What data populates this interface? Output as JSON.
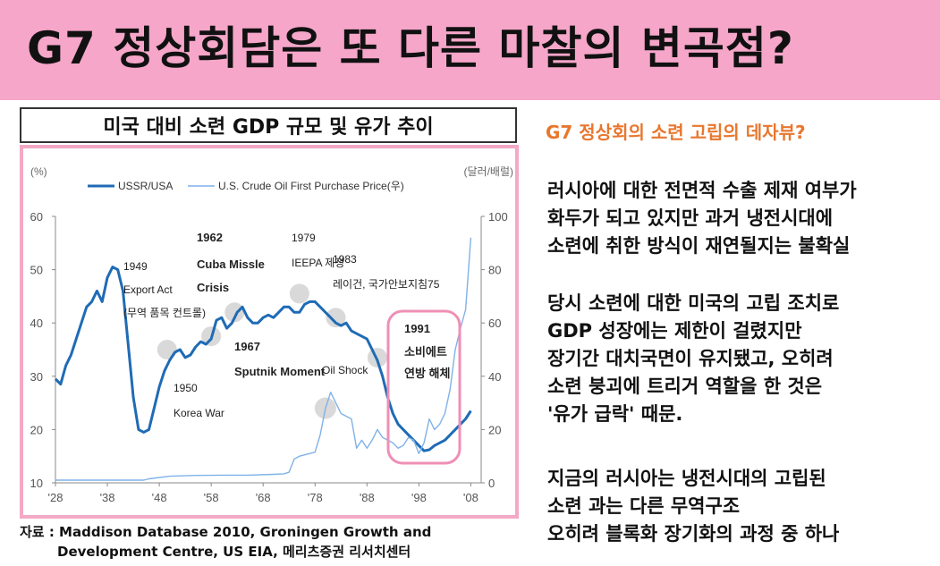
{
  "header": {
    "title": "G7 정상회담은 또 다른 마찰의 변곡점?"
  },
  "chart_box_title": "미국 대비 소련 GDP 규모 및 유가 추이",
  "chart_data": {
    "type": "line",
    "left_unit": "(%)",
    "right_unit": "(달러/배럴)",
    "x_ticks": [
      "'28",
      "'38",
      "'48",
      "'58",
      "'68",
      "'78",
      "'88",
      "'98",
      "'08"
    ],
    "x_tick_years": [
      1928,
      1938,
      1948,
      1958,
      1968,
      1978,
      1988,
      1998,
      2008
    ],
    "y_left_ticks": [
      10,
      20,
      30,
      40,
      50,
      60
    ],
    "y_right_ticks": [
      0,
      20,
      40,
      60,
      80,
      100
    ],
    "ylim_left": [
      10,
      60
    ],
    "ylim_right": [
      0,
      100
    ],
    "xlim": [
      1928,
      2010
    ],
    "series": [
      {
        "name": "USSR/USA",
        "axis": "left",
        "color": "#1f6bb5",
        "x": [
          1928,
          1929,
          1930,
          1931,
          1932,
          1933,
          1934,
          1935,
          1936,
          1937,
          1938,
          1939,
          1940,
          1941,
          1942,
          1943,
          1944,
          1945,
          1946,
          1947,
          1948,
          1949,
          1950,
          1951,
          1952,
          1953,
          1954,
          1955,
          1956,
          1957,
          1958,
          1959,
          1960,
          1961,
          1962,
          1963,
          1964,
          1965,
          1966,
          1967,
          1968,
          1969,
          1970,
          1971,
          1972,
          1973,
          1974,
          1975,
          1976,
          1977,
          1978,
          1979,
          1980,
          1981,
          1982,
          1983,
          1984,
          1985,
          1986,
          1987,
          1988,
          1989,
          1990,
          1991,
          1992,
          1993,
          1994,
          1995,
          1996,
          1997,
          1998,
          1999,
          2000,
          2001,
          2002,
          2003,
          2004,
          2005,
          2006,
          2007,
          2008
        ],
        "values": [
          29.5,
          28.5,
          32,
          34,
          37,
          40,
          43,
          44,
          46,
          44,
          48.5,
          50.5,
          50,
          46,
          36,
          26,
          20,
          19.5,
          20,
          24,
          28,
          31,
          33,
          34.5,
          35,
          33.5,
          34,
          35.5,
          36.5,
          36,
          37,
          40.5,
          41,
          39,
          40,
          42,
          43,
          41,
          40,
          40,
          41,
          41.5,
          41,
          42,
          43,
          43,
          42,
          42,
          43.5,
          44,
          44,
          43,
          42,
          41,
          40,
          39.5,
          40,
          38.5,
          38,
          37.5,
          37,
          35,
          33,
          30,
          26,
          23,
          21,
          20,
          19,
          18,
          17,
          16,
          16.2,
          17,
          17.5,
          18,
          19,
          20,
          21,
          22,
          23.5
        ]
      },
      {
        "name": "U.S. Crude Oil First Purchase  Price(우)",
        "axis": "right",
        "color": "#7fb2e8",
        "x": [
          1928,
          1935,
          1945,
          1946,
          1950,
          1955,
          1960,
          1965,
          1970,
          1972,
          1973,
          1974,
          1975,
          1976,
          1977,
          1978,
          1979,
          1980,
          1981,
          1982,
          1983,
          1984,
          1985,
          1986,
          1987,
          1988,
          1989,
          1990,
          1991,
          1992,
          1993,
          1994,
          1995,
          1996,
          1997,
          1998,
          1999,
          2000,
          2001,
          2002,
          2003,
          2004,
          2005,
          2006,
          2007,
          2008
        ],
        "values": [
          1,
          1,
          1,
          1.5,
          2.5,
          2.8,
          2.9,
          2.9,
          3.2,
          3.4,
          4,
          9,
          10,
          10.5,
          11,
          11.5,
          18,
          28,
          34,
          30,
          26,
          25,
          24,
          13,
          16,
          13,
          16,
          20,
          17,
          16,
          15,
          13,
          14,
          17,
          16,
          11,
          15,
          24,
          20,
          22,
          26,
          35,
          50,
          58,
          65,
          92
        ]
      }
    ],
    "annotations": [
      {
        "text": "1949",
        "text2": "Export Act",
        "text3": "(무역 품목 컨트롤)"
      },
      {
        "text": "1950",
        "text2": "Korea War"
      },
      {
        "text": "1962",
        "text2": "Cuba Missle",
        "text3": "Crisis"
      },
      {
        "text": "1967",
        "text2": "Sputnik Moment"
      },
      {
        "text": "Oil Shock"
      },
      {
        "text": "1979",
        "text2": "IEEPA 제정"
      },
      {
        "text": "1983",
        "text2": "레이건, 국가안보지침75"
      },
      {
        "text": "1991",
        "text2": "소비에트",
        "text3": "연방 해체"
      }
    ]
  },
  "source": {
    "line1": "자료 : Maddison Database 2010, Groningen Growth and",
    "line2": "Development Centre, US EIA, 메리츠증권 리서치센터"
  },
  "right": {
    "heading": "G7 정상회의 소련 고립의 데자뷰?",
    "p1": [
      "러시아에 대한 전면적 수출 제재 여부가",
      "화두가 되고 있지만 과거 냉전시대에",
      "소련에 취한 방식이 재연될지는 불확실"
    ],
    "p2": [
      "당시 소련에 대한 미국의 고립 조치로",
      "GDP 성장에는 제한이 걸렸지만",
      "장기간 대치국면이 유지됐고, 오히려",
      "소련 붕괴에 트리거 역할을 한 것은",
      "'유가 급락' 때문."
    ],
    "p3": [
      "지금의 러시아는 냉전시대의 고립된",
      "소련 과는 다른 무역구조",
      "오히려 블록화 장기화의 과정 중 하나"
    ]
  }
}
